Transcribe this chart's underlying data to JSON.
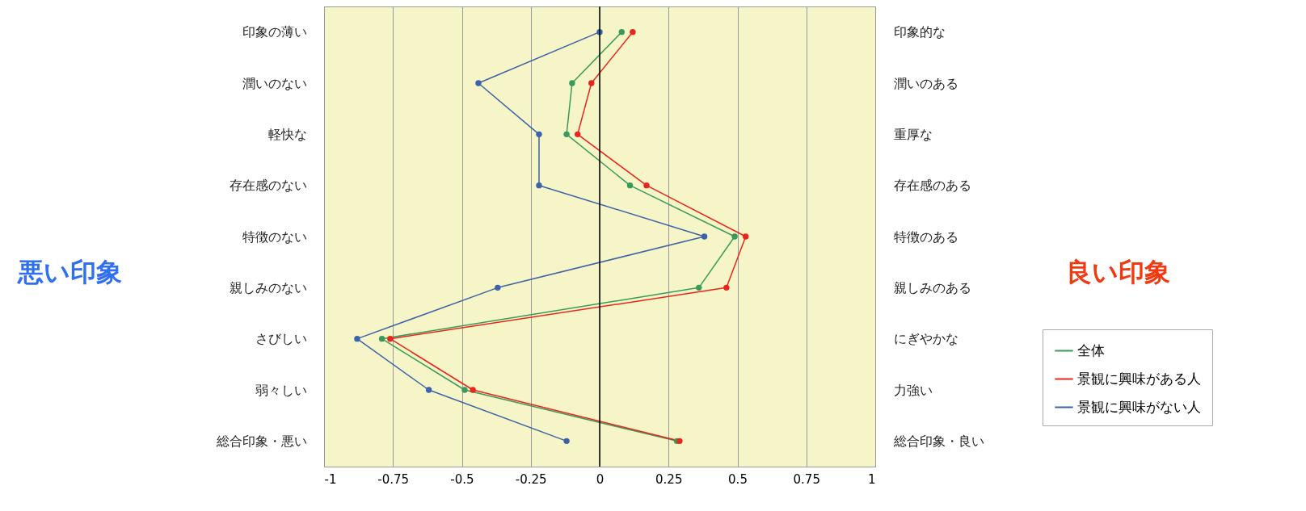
{
  "chart_data": {
    "type": "line",
    "orientation": "horizontal",
    "categories": [
      "印象の薄い",
      "潤いのない",
      "軽快な",
      "存在感のない",
      "特徴のない",
      "親しみのない",
      "さびしい",
      "弱々しい",
      "総合印象・悪い"
    ],
    "y2_categories": [
      "印象的な",
      "潤いのある",
      "重厚な",
      "存在感のある",
      "特徴のある",
      "親しみのある",
      "にぎやかな",
      "力強い",
      "総合印象・良い"
    ],
    "series": [
      {
        "name": "全体",
        "color": "#3a9a5a",
        "values": [
          0.08,
          -0.1,
          -0.12,
          0.11,
          0.49,
          0.36,
          -0.79,
          -0.49,
          0.28
        ]
      },
      {
        "name": "景観に興味がある人",
        "color": "#e8261e",
        "values": [
          0.12,
          -0.03,
          -0.08,
          0.17,
          0.53,
          0.46,
          -0.76,
          -0.46,
          0.29
        ]
      },
      {
        "name": "景観に興味がない人",
        "color": "#3d62a8",
        "values": [
          0.0,
          -0.44,
          -0.22,
          -0.22,
          0.38,
          -0.37,
          -0.88,
          -0.62,
          -0.12
        ]
      }
    ],
    "xlim": [
      -1,
      1
    ],
    "xticks": [
      -1,
      -0.75,
      -0.5,
      -0.25,
      0,
      0.25,
      0.5,
      0.75,
      1
    ],
    "ref_lines": [
      {
        "axis": "x",
        "value": 0,
        "color": "#000000"
      }
    ],
    "annotations": [
      "悪い印象",
      "良い印象"
    ],
    "grid": "x",
    "marker": "circle",
    "line_style": "solid",
    "legend": "bottom right"
  }
}
